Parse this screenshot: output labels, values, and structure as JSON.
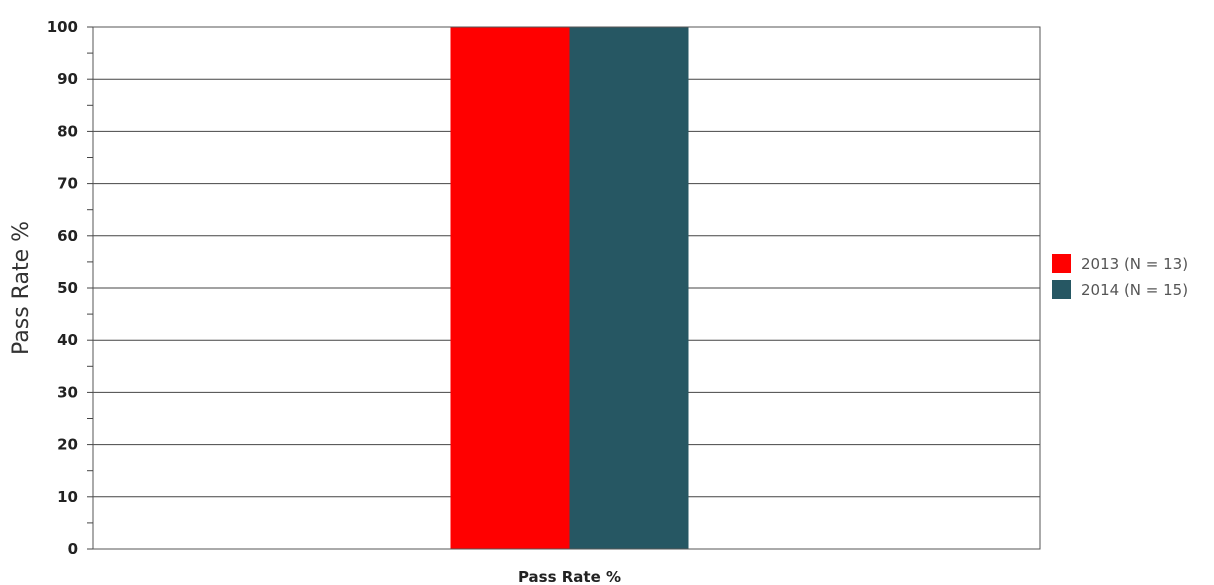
{
  "chart_data": {
    "type": "bar",
    "categories": [
      "Pass Rate %"
    ],
    "series": [
      {
        "name": "2013 (N = 13)",
        "values": [
          100
        ],
        "color": "#ff0000"
      },
      {
        "name": "2014 (N = 15)",
        "values": [
          100
        ],
        "color": "#265763"
      }
    ],
    "title": "",
    "xlabel": "",
    "ylabel": "Pass Rate %",
    "ylim": [
      0,
      100
    ],
    "yticks": [
      "0",
      "10",
      "20",
      "30",
      "40",
      "50",
      "60",
      "70",
      "80",
      "90",
      "100"
    ],
    "grid": true,
    "legend_position": "right"
  }
}
